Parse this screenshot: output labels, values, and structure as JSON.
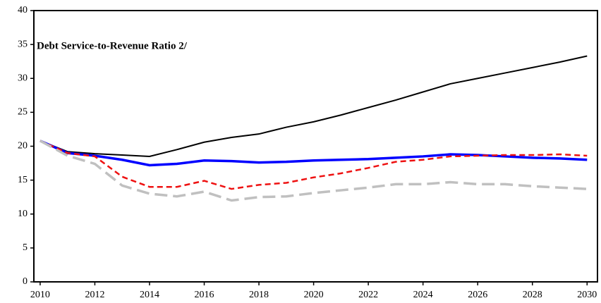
{
  "chart_data": {
    "type": "line",
    "title": "Debt Service-to-Revenue Ratio 2/",
    "x": [
      2010,
      2011,
      2012,
      2013,
      2014,
      2015,
      2016,
      2017,
      2018,
      2019,
      2020,
      2021,
      2022,
      2023,
      2024,
      2025,
      2026,
      2027,
      2028,
      2029,
      2030
    ],
    "series": [
      {
        "color": "#000000",
        "line_width": 2,
        "dash": "solid",
        "values": [
          20.8,
          19.2,
          18.9,
          18.7,
          18.5,
          19.5,
          20.6,
          21.3,
          21.8,
          22.8,
          23.6,
          24.6,
          25.7,
          26.8,
          28.0,
          29.2,
          30.0,
          30.8,
          31.6,
          32.4,
          33.3
        ]
      },
      {
        "color": "#0000ff",
        "line_width": 3.5,
        "dash": "solid",
        "values": [
          20.8,
          19.0,
          18.6,
          18.0,
          17.2,
          17.4,
          17.9,
          17.8,
          17.6,
          17.7,
          17.9,
          18.0,
          18.1,
          18.3,
          18.5,
          18.8,
          18.7,
          18.5,
          18.3,
          18.2,
          18.0
        ]
      },
      {
        "color": "#ee1111",
        "line_width": 2.5,
        "dash": "short",
        "values": [
          20.8,
          19.0,
          18.5,
          15.5,
          14.0,
          14.0,
          14.9,
          13.7,
          14.3,
          14.6,
          15.4,
          16.0,
          16.8,
          17.7,
          18.0,
          18.5,
          18.6,
          18.7,
          18.7,
          18.8,
          18.6
        ]
      },
      {
        "color": "#c0c0c0",
        "line_width": 3.5,
        "dash": "long",
        "values": [
          20.8,
          18.6,
          17.4,
          14.2,
          13.0,
          12.6,
          13.3,
          12.0,
          12.5,
          12.6,
          13.1,
          13.5,
          13.9,
          14.4,
          14.4,
          14.7,
          14.4,
          14.4,
          14.1,
          13.9,
          13.7
        ]
      }
    ],
    "xlim": [
      2009.77,
      2030.38
    ],
    "xticks": [
      2010,
      2012,
      2014,
      2016,
      2018,
      2020,
      2022,
      2024,
      2026,
      2028,
      2030
    ],
    "ylim": [
      0,
      40
    ],
    "yticks": [
      0,
      5,
      10,
      15,
      20,
      25,
      30,
      35,
      40
    ]
  }
}
